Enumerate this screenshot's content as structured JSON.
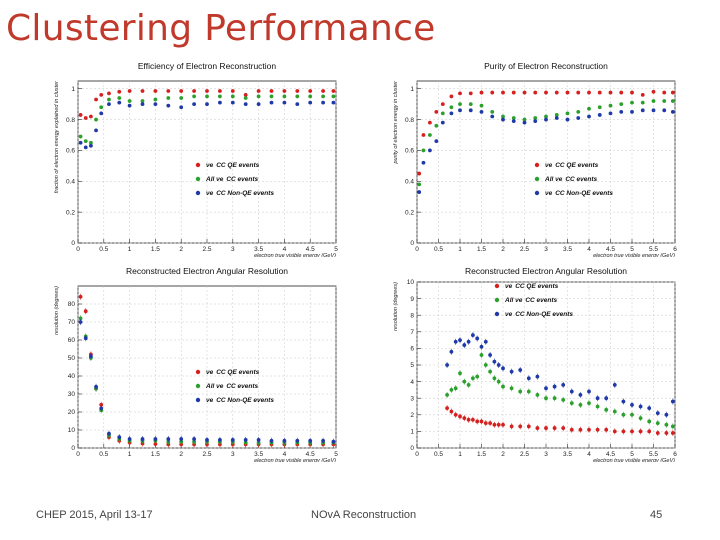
{
  "slide": {
    "title": "Clustering Performance",
    "footer_left": "CHEP 2015,  April 13-17",
    "footer_center": "NOvA Reconstruction",
    "page_number": "45"
  },
  "colors": {
    "title": "#c0392b",
    "red": "#d62020",
    "green": "#2ca02c",
    "blue": "#1f3aa8"
  },
  "chart_data": [
    {
      "id": "efficiency",
      "type": "scatter",
      "title": "Efficiency of Electron Reconstruction",
      "xlabel": "electron true visible energy (GeV)",
      "ylabel": "fraction of electron energy explained in cluster",
      "xlim": [
        0,
        5
      ],
      "ylim": [
        0,
        1.05
      ],
      "xticks": [
        0,
        0.5,
        1,
        1.5,
        2,
        2.5,
        3,
        3.5,
        4,
        4.5,
        5
      ],
      "yticks": [
        0,
        0.2,
        0.4,
        0.6,
        0.8,
        1
      ],
      "legend_position": "center-right",
      "series": [
        {
          "name": "νe CC QE events",
          "legend_prefix": "νe",
          "legend_rest": "CC QE events",
          "color": "#d62020",
          "x": [
            0.05,
            0.15,
            0.25,
            0.35,
            0.45,
            0.6,
            0.8,
            1.0,
            1.25,
            1.5,
            1.75,
            2.0,
            2.25,
            2.5,
            2.75,
            3.0,
            3.25,
            3.5,
            3.75,
            4.0,
            4.25,
            4.5,
            4.75,
            4.95
          ],
          "y": [
            0.83,
            0.81,
            0.82,
            0.93,
            0.96,
            0.97,
            0.98,
            0.985,
            0.985,
            0.985,
            0.985,
            0.985,
            0.985,
            0.985,
            0.985,
            0.985,
            0.96,
            0.985,
            0.985,
            0.985,
            0.985,
            0.985,
            0.985,
            0.985
          ]
        },
        {
          "name": "All νe CC events",
          "legend_prefix": "All νe",
          "legend_rest": "CC events",
          "color": "#2ca02c",
          "x": [
            0.05,
            0.15,
            0.25,
            0.35,
            0.45,
            0.6,
            0.8,
            1.0,
            1.25,
            1.5,
            1.75,
            2.0,
            2.25,
            2.5,
            2.75,
            3.0,
            3.25,
            3.5,
            3.75,
            4.0,
            4.25,
            4.5,
            4.75,
            4.95
          ],
          "y": [
            0.69,
            0.66,
            0.65,
            0.8,
            0.88,
            0.93,
            0.94,
            0.92,
            0.92,
            0.93,
            0.94,
            0.94,
            0.95,
            0.95,
            0.95,
            0.95,
            0.94,
            0.95,
            0.95,
            0.95,
            0.95,
            0.95,
            0.95,
            0.95
          ]
        },
        {
          "name": "νe CC Non-QE events",
          "legend_prefix": "νe",
          "legend_rest": "CC Non-QE events",
          "color": "#1f3aa8",
          "x": [
            0.05,
            0.15,
            0.25,
            0.35,
            0.45,
            0.6,
            0.8,
            1.0,
            1.25,
            1.5,
            1.75,
            2.0,
            2.25,
            2.5,
            2.75,
            3.0,
            3.25,
            3.5,
            3.75,
            4.0,
            4.25,
            4.5,
            4.75,
            4.95
          ],
          "y": [
            0.65,
            0.62,
            0.63,
            0.73,
            0.84,
            0.9,
            0.91,
            0.89,
            0.9,
            0.9,
            0.89,
            0.88,
            0.9,
            0.9,
            0.91,
            0.91,
            0.9,
            0.9,
            0.91,
            0.91,
            0.9,
            0.91,
            0.91,
            0.91
          ]
        }
      ]
    },
    {
      "id": "purity",
      "type": "scatter",
      "title": "Purity of Electron Reconstruction",
      "xlabel": "electron true visible energy (GeV)",
      "ylabel": "purity of electron energy in cluster",
      "xlim": [
        0,
        6
      ],
      "ylim": [
        0,
        1.05
      ],
      "xticks": [
        0,
        0.5,
        1,
        1.5,
        2,
        2.5,
        3,
        3.5,
        4,
        4.5,
        5,
        5.5,
        6
      ],
      "yticks": [
        0,
        0.2,
        0.4,
        0.6,
        0.8,
        1
      ],
      "legend_position": "center-right",
      "series": [
        {
          "name": "νe CC QE events",
          "legend_prefix": "νe",
          "legend_rest": "CC QE events",
          "color": "#d62020",
          "x": [
            0.05,
            0.15,
            0.3,
            0.45,
            0.6,
            0.8,
            1.0,
            1.25,
            1.5,
            1.75,
            2.0,
            2.25,
            2.5,
            2.75,
            3.0,
            3.25,
            3.5,
            3.75,
            4.0,
            4.25,
            4.5,
            4.75,
            5.0,
            5.25,
            5.5,
            5.75,
            5.95
          ],
          "y": [
            0.45,
            0.7,
            0.78,
            0.85,
            0.9,
            0.95,
            0.97,
            0.97,
            0.975,
            0.975,
            0.975,
            0.975,
            0.975,
            0.975,
            0.975,
            0.975,
            0.975,
            0.975,
            0.975,
            0.975,
            0.975,
            0.975,
            0.975,
            0.96,
            0.98,
            0.975,
            0.975
          ]
        },
        {
          "name": "All νe CC events",
          "legend_prefix": "All νe",
          "legend_rest": "CC events",
          "color": "#2ca02c",
          "x": [
            0.05,
            0.15,
            0.3,
            0.45,
            0.6,
            0.8,
            1.0,
            1.25,
            1.5,
            1.75,
            2.0,
            2.25,
            2.5,
            2.75,
            3.0,
            3.25,
            3.5,
            3.75,
            4.0,
            4.25,
            4.5,
            4.75,
            5.0,
            5.25,
            5.5,
            5.75,
            5.95
          ],
          "y": [
            0.38,
            0.6,
            0.7,
            0.76,
            0.84,
            0.88,
            0.9,
            0.9,
            0.89,
            0.85,
            0.82,
            0.81,
            0.8,
            0.81,
            0.82,
            0.83,
            0.84,
            0.85,
            0.87,
            0.88,
            0.89,
            0.9,
            0.91,
            0.91,
            0.92,
            0.92,
            0.92
          ]
        },
        {
          "name": "νe CC Non-QE events",
          "legend_prefix": "νe",
          "legend_rest": "CC Non-QE events",
          "color": "#1f3aa8",
          "x": [
            0.05,
            0.15,
            0.3,
            0.45,
            0.6,
            0.8,
            1.0,
            1.25,
            1.5,
            1.75,
            2.0,
            2.25,
            2.5,
            2.75,
            3.0,
            3.25,
            3.5,
            3.75,
            4.0,
            4.25,
            4.5,
            4.75,
            5.0,
            5.25,
            5.5,
            5.75,
            5.95
          ],
          "y": [
            0.33,
            0.52,
            0.6,
            0.66,
            0.78,
            0.84,
            0.86,
            0.86,
            0.85,
            0.82,
            0.8,
            0.79,
            0.78,
            0.79,
            0.8,
            0.81,
            0.8,
            0.81,
            0.82,
            0.83,
            0.84,
            0.85,
            0.85,
            0.86,
            0.86,
            0.86,
            0.85
          ]
        }
      ]
    },
    {
      "id": "angular-zoomout",
      "type": "scatter",
      "title": "Reconstructed Electron Angular Resolution",
      "xlabel": "electron true visible energy (GeV)",
      "ylabel": "resolution (degrees)",
      "xlim": [
        0,
        5
      ],
      "ylim": [
        0,
        90
      ],
      "xticks": [
        0,
        0.5,
        1,
        1.5,
        2,
        2.5,
        3,
        3.5,
        4,
        4.5,
        5
      ],
      "yticks": [
        0,
        10,
        20,
        30,
        40,
        50,
        60,
        70,
        80
      ],
      "legend_position": "center-right",
      "series": [
        {
          "name": "νe CC QE events",
          "legend_prefix": "νe",
          "legend_rest": "CC QE events",
          "color": "#d62020",
          "x": [
            0.05,
            0.15,
            0.25,
            0.35,
            0.45,
            0.6,
            0.8,
            1.0,
            1.25,
            1.5,
            1.75,
            2.0,
            2.25,
            2.5,
            2.75,
            3.0,
            3.25,
            3.5,
            3.75,
            4.0,
            4.25,
            4.5,
            4.75,
            4.95
          ],
          "y": [
            84,
            76,
            52,
            33,
            24,
            6,
            4,
            3,
            2.5,
            2.2,
            2,
            2,
            2,
            2,
            2,
            2,
            2,
            2,
            2,
            2,
            2,
            2,
            2,
            2
          ]
        },
        {
          "name": "All νe CC events",
          "legend_prefix": "All νe",
          "legend_rest": "CC events",
          "color": "#2ca02c",
          "x": [
            0.05,
            0.15,
            0.25,
            0.35,
            0.45,
            0.6,
            0.8,
            1.0,
            1.25,
            1.5,
            1.75,
            2.0,
            2.25,
            2.5,
            2.75,
            3.0,
            3.25,
            3.5,
            3.75,
            4.0,
            4.25,
            4.5,
            4.75,
            4.95
          ],
          "y": [
            72,
            62,
            50,
            33,
            21,
            7,
            5,
            4,
            4,
            4,
            3.5,
            3.5,
            3.5,
            3.5,
            3.5,
            3.5,
            3,
            3,
            3,
            3,
            3,
            3,
            3,
            3
          ]
        },
        {
          "name": "νe CC Non-QE events",
          "legend_prefix": "νe",
          "legend_rest": "CC Non-QE events",
          "color": "#1f3aa8",
          "x": [
            0.05,
            0.15,
            0.25,
            0.35,
            0.45,
            0.6,
            0.8,
            1.0,
            1.25,
            1.5,
            1.75,
            2.0,
            2.25,
            2.5,
            2.75,
            3.0,
            3.25,
            3.5,
            3.75,
            4.0,
            4.25,
            4.5,
            4.75,
            4.95
          ],
          "y": [
            70,
            61,
            51,
            34,
            22,
            8,
            6,
            5,
            5,
            5,
            5,
            5,
            5,
            4.5,
            4.5,
            4.5,
            4.5,
            4.5,
            4,
            4,
            4,
            4,
            4,
            3.5
          ]
        }
      ]
    },
    {
      "id": "angular-zoomin",
      "type": "scatter",
      "title": "Reconstructed Electron Angular Resolution",
      "xlabel": "electron true visible energy (GeV)",
      "ylabel": "resolution (degrees)",
      "xlim": [
        0,
        6
      ],
      "ylim": [
        0,
        10
      ],
      "xticks": [
        0,
        0.5,
        1,
        1.5,
        2,
        2.5,
        3,
        3.5,
        4,
        4.5,
        5,
        5.5,
        6
      ],
      "yticks": [
        0,
        1,
        2,
        3,
        4,
        5,
        6,
        7,
        8,
        9,
        10
      ],
      "legend_position": "top-center",
      "series": [
        {
          "name": "νe CC QE events",
          "legend_prefix": "νe",
          "legend_rest": "CC QE events",
          "color": "#d62020",
          "x": [
            0.7,
            0.8,
            0.9,
            1.0,
            1.1,
            1.2,
            1.3,
            1.4,
            1.5,
            1.6,
            1.7,
            1.8,
            1.9,
            2.0,
            2.2,
            2.4,
            2.6,
            2.8,
            3.0,
            3.2,
            3.4,
            3.6,
            3.8,
            4.0,
            4.2,
            4.4,
            4.6,
            4.8,
            5.0,
            5.2,
            5.4,
            5.6,
            5.8,
            5.95
          ],
          "y": [
            2.4,
            2.2,
            2.0,
            1.9,
            1.8,
            1.7,
            1.7,
            1.6,
            1.6,
            1.5,
            1.5,
            1.4,
            1.4,
            1.4,
            1.3,
            1.3,
            1.3,
            1.2,
            1.2,
            1.2,
            1.2,
            1.1,
            1.1,
            1.1,
            1.1,
            1.1,
            1.0,
            1.0,
            1.0,
            1.0,
            1.0,
            0.9,
            0.9,
            0.9
          ]
        },
        {
          "name": "All νe CC events",
          "legend_prefix": "All νe",
          "legend_rest": "CC events",
          "color": "#2ca02c",
          "x": [
            0.7,
            0.8,
            0.9,
            1.0,
            1.1,
            1.2,
            1.3,
            1.4,
            1.5,
            1.6,
            1.7,
            1.8,
            1.9,
            2.0,
            2.2,
            2.4,
            2.6,
            2.8,
            3.0,
            3.2,
            3.4,
            3.6,
            3.8,
            4.0,
            4.2,
            4.4,
            4.6,
            4.8,
            5.0,
            5.2,
            5.4,
            5.6,
            5.8,
            5.95
          ],
          "y": [
            3.2,
            3.5,
            3.6,
            4.5,
            4.0,
            3.8,
            4.2,
            4.3,
            5.6,
            5.0,
            4.6,
            4.2,
            4.0,
            3.7,
            3.6,
            3.4,
            3.4,
            3.2,
            3.0,
            3.0,
            2.9,
            2.7,
            2.6,
            2.7,
            2.5,
            2.3,
            2.2,
            2.0,
            2.0,
            1.8,
            1.6,
            1.5,
            1.4,
            1.3
          ]
        },
        {
          "name": "νe CC Non-QE events",
          "legend_prefix": "νe",
          "legend_rest": "CC Non-QE events",
          "color": "#1f3aa8",
          "x": [
            0.7,
            0.8,
            0.9,
            1.0,
            1.1,
            1.2,
            1.3,
            1.4,
            1.5,
            1.6,
            1.7,
            1.8,
            1.9,
            2.0,
            2.2,
            2.4,
            2.6,
            2.8,
            3.0,
            3.2,
            3.4,
            3.6,
            3.8,
            4.0,
            4.2,
            4.4,
            4.6,
            4.8,
            5.0,
            5.2,
            5.4,
            5.6,
            5.8,
            5.95
          ],
          "y": [
            5.0,
            5.8,
            6.4,
            6.5,
            6.2,
            6.4,
            6.8,
            6.6,
            6.1,
            6.4,
            5.6,
            5.2,
            5.0,
            4.8,
            4.6,
            4.7,
            4.2,
            4.3,
            3.6,
            3.7,
            3.8,
            3.4,
            3.2,
            3.4,
            3.0,
            3.0,
            3.8,
            2.8,
            2.6,
            2.5,
            2.4,
            2.1,
            2.0,
            2.8
          ]
        }
      ]
    }
  ]
}
